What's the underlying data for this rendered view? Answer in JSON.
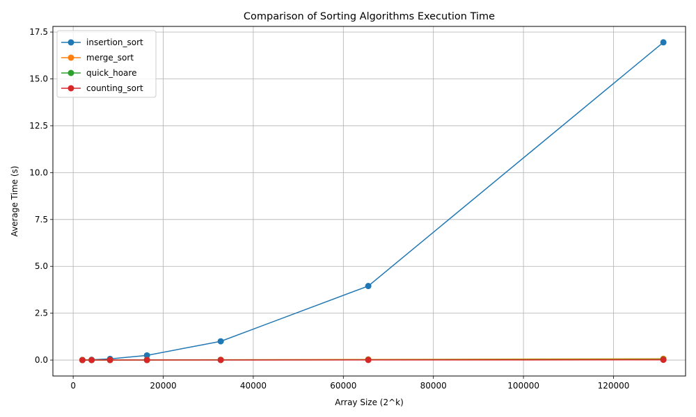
{
  "chart_data": {
    "type": "line",
    "title": "Comparison of Sorting Algorithms Execution Time",
    "xlabel": "Array Size (2^k)",
    "ylabel": "Average Time (s)",
    "xlim": [
      -4504,
      136000
    ],
    "ylim": [
      -0.85,
      17.8
    ],
    "xticks": [
      0,
      20000,
      40000,
      60000,
      80000,
      100000,
      120000
    ],
    "yticks": [
      0.0,
      2.5,
      5.0,
      7.5,
      10.0,
      12.5,
      15.0,
      17.5
    ],
    "xtick_labels": [
      "0",
      "20000",
      "40000",
      "60000",
      "80000",
      "100000",
      "120000"
    ],
    "ytick_labels": [
      "0.0",
      "2.5",
      "5.0",
      "7.5",
      "10.0",
      "12.5",
      "15.0",
      "17.5"
    ],
    "grid": true,
    "legend_position": "top-left",
    "x": [
      2048,
      4096,
      8192,
      16384,
      32768,
      65536,
      131072
    ],
    "series": [
      {
        "name": "insertion_sort",
        "color": "#1f77b4",
        "values": [
          0.004,
          0.016,
          0.063,
          0.25,
          1.0,
          3.95,
          16.95
        ]
      },
      {
        "name": "merge_sort",
        "color": "#ff7f0e",
        "values": [
          0.001,
          0.002,
          0.004,
          0.008,
          0.016,
          0.033,
          0.07
        ]
      },
      {
        "name": "quick_hoare",
        "color": "#2ca02c",
        "values": [
          0.0005,
          0.001,
          0.002,
          0.004,
          0.008,
          0.017,
          0.035
        ]
      },
      {
        "name": "counting_sort",
        "color": "#d62728",
        "values": [
          0.0002,
          0.0004,
          0.0008,
          0.0016,
          0.003,
          0.006,
          0.012
        ]
      }
    ]
  }
}
